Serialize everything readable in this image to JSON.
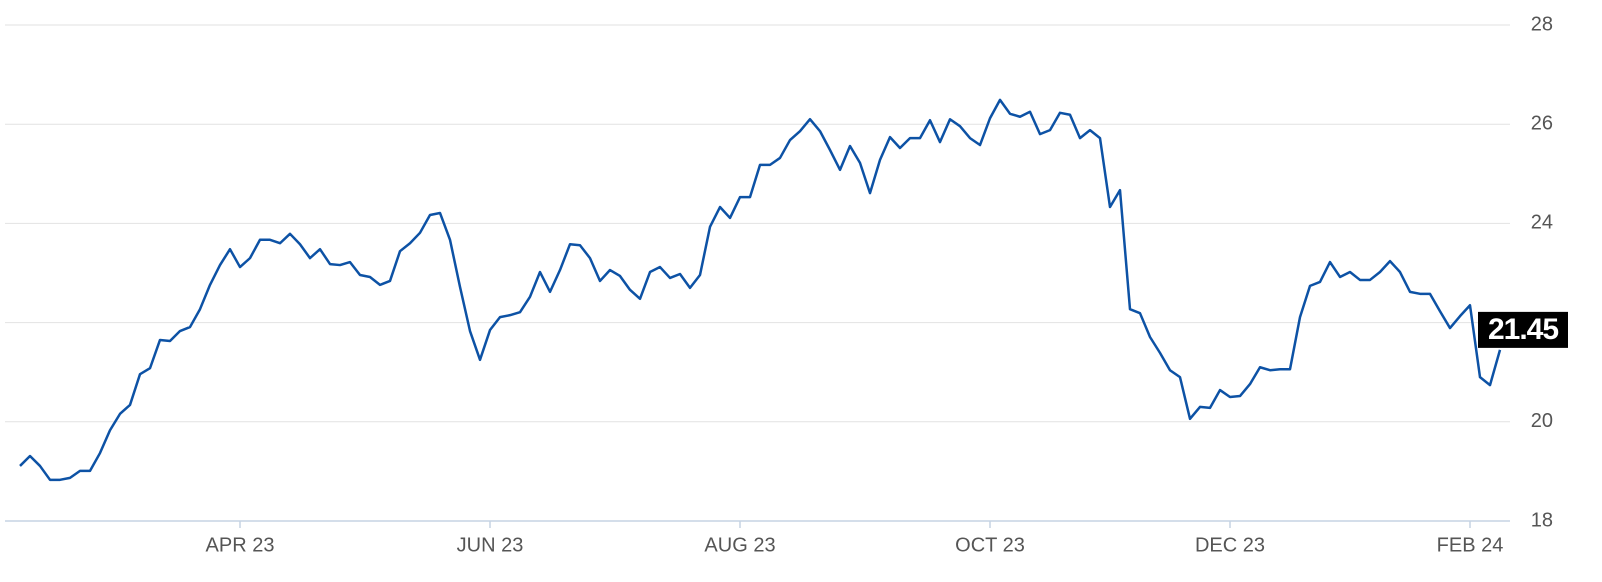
{
  "chart_data": {
    "type": "line",
    "categories": [
      null,
      null,
      null,
      null,
      null,
      null,
      null,
      null,
      null,
      null,
      null,
      null,
      null,
      null,
      null,
      null,
      null,
      null,
      null,
      null,
      null,
      null,
      "APR 23",
      null,
      null,
      null,
      null,
      null,
      null,
      null,
      null,
      null,
      null,
      null,
      null,
      null,
      null,
      null,
      null,
      null,
      null,
      null,
      null,
      null,
      null,
      null,
      null,
      "JUN 23",
      null,
      null,
      null,
      null,
      null,
      null,
      null,
      null,
      null,
      null,
      null,
      null,
      null,
      null,
      null,
      null,
      null,
      null,
      null,
      null,
      null,
      null,
      null,
      null,
      "AUG 23",
      null,
      null,
      null,
      null,
      null,
      null,
      null,
      null,
      null,
      null,
      null,
      null,
      null,
      null,
      null,
      null,
      null,
      null,
      null,
      null,
      null,
      null,
      null,
      null,
      "OCT 23",
      null,
      null,
      null,
      null,
      null,
      null,
      null,
      null,
      null,
      null,
      null,
      null,
      null,
      null,
      null,
      null,
      null,
      null,
      null,
      null,
      null,
      null,
      null,
      "DEC 23",
      null,
      null,
      null,
      null,
      null,
      null,
      null,
      null,
      null,
      null,
      null,
      null,
      null,
      null,
      null,
      null,
      null,
      null,
      null,
      null,
      null,
      null,
      null,
      "FEB 24",
      null,
      null,
      null
    ],
    "values": [
      19.11,
      19.31,
      19.11,
      18.83,
      18.83,
      18.87,
      19.01,
      19.01,
      19.37,
      19.83,
      20.16,
      20.34,
      20.96,
      21.08,
      21.65,
      21.63,
      21.83,
      21.91,
      22.27,
      22.76,
      23.16,
      23.48,
      23.12,
      23.3,
      23.67,
      23.67,
      23.6,
      23.79,
      23.58,
      23.3,
      23.48,
      23.18,
      23.16,
      23.22,
      22.96,
      22.92,
      22.76,
      22.84,
      23.44,
      23.6,
      23.81,
      24.17,
      24.21,
      23.67,
      22.72,
      21.83,
      21.25,
      21.85,
      22.11,
      22.15,
      22.21,
      22.52,
      23.02,
      22.62,
      23.06,
      23.58,
      23.56,
      23.3,
      22.84,
      23.06,
      22.94,
      22.66,
      22.48,
      23.02,
      23.12,
      22.9,
      22.98,
      22.7,
      22.96,
      23.93,
      24.33,
      24.11,
      24.53,
      24.53,
      25.18,
      25.18,
      25.32,
      25.68,
      25.86,
      26.1,
      25.86,
      25.48,
      25.08,
      25.56,
      25.22,
      24.61,
      25.28,
      25.74,
      25.52,
      25.72,
      25.72,
      26.08,
      25.64,
      26.1,
      25.96,
      25.72,
      25.58,
      26.12,
      26.49,
      26.21,
      26.15,
      26.25,
      25.8,
      25.88,
      26.23,
      26.19,
      25.72,
      25.88,
      25.72,
      24.33,
      24.67,
      22.27,
      22.19,
      21.71,
      21.39,
      21.04,
      20.9,
      20.06,
      20.3,
      20.28,
      20.64,
      20.5,
      20.52,
      20.76,
      21.1,
      21.04,
      21.06,
      21.06,
      22.11,
      22.74,
      22.82,
      23.22,
      22.92,
      23.02,
      22.86,
      22.86,
      23.02,
      23.24,
      23.02,
      22.62,
      22.58,
      22.58,
      22.23,
      21.89,
      22.13,
      22.35,
      20.9,
      20.74,
      21.45
    ],
    "color": "#0d52a5",
    "ylim": [
      18,
      28
    ],
    "yticks": [
      18,
      20,
      22,
      24,
      26,
      28
    ],
    "grid": true
  }
}
